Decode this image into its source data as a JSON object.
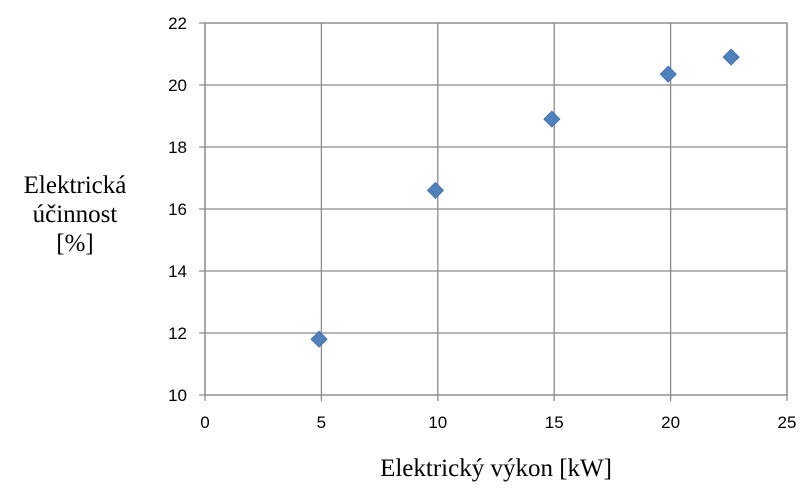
{
  "chart_data": {
    "type": "scatter",
    "title": "",
    "xlabel": "Elektrický výkon [kW]",
    "ylabel_lines": [
      "Elektrická",
      "účinnost",
      "[%]"
    ],
    "xlim": [
      0,
      25
    ],
    "ylim": [
      10,
      22
    ],
    "xticks": [
      "0",
      "5",
      "10",
      "15",
      "20",
      "25"
    ],
    "yticks": [
      "10",
      "12",
      "14",
      "16",
      "18",
      "20",
      "22"
    ],
    "grid": true,
    "legend": "none",
    "marker": "diamond",
    "marker_color": "#4f81bd",
    "points": [
      {
        "x": 4.9,
        "y": 11.8
      },
      {
        "x": 9.9,
        "y": 16.6
      },
      {
        "x": 14.9,
        "y": 18.9
      },
      {
        "x": 19.9,
        "y": 20.35
      },
      {
        "x": 22.6,
        "y": 20.9
      }
    ]
  }
}
